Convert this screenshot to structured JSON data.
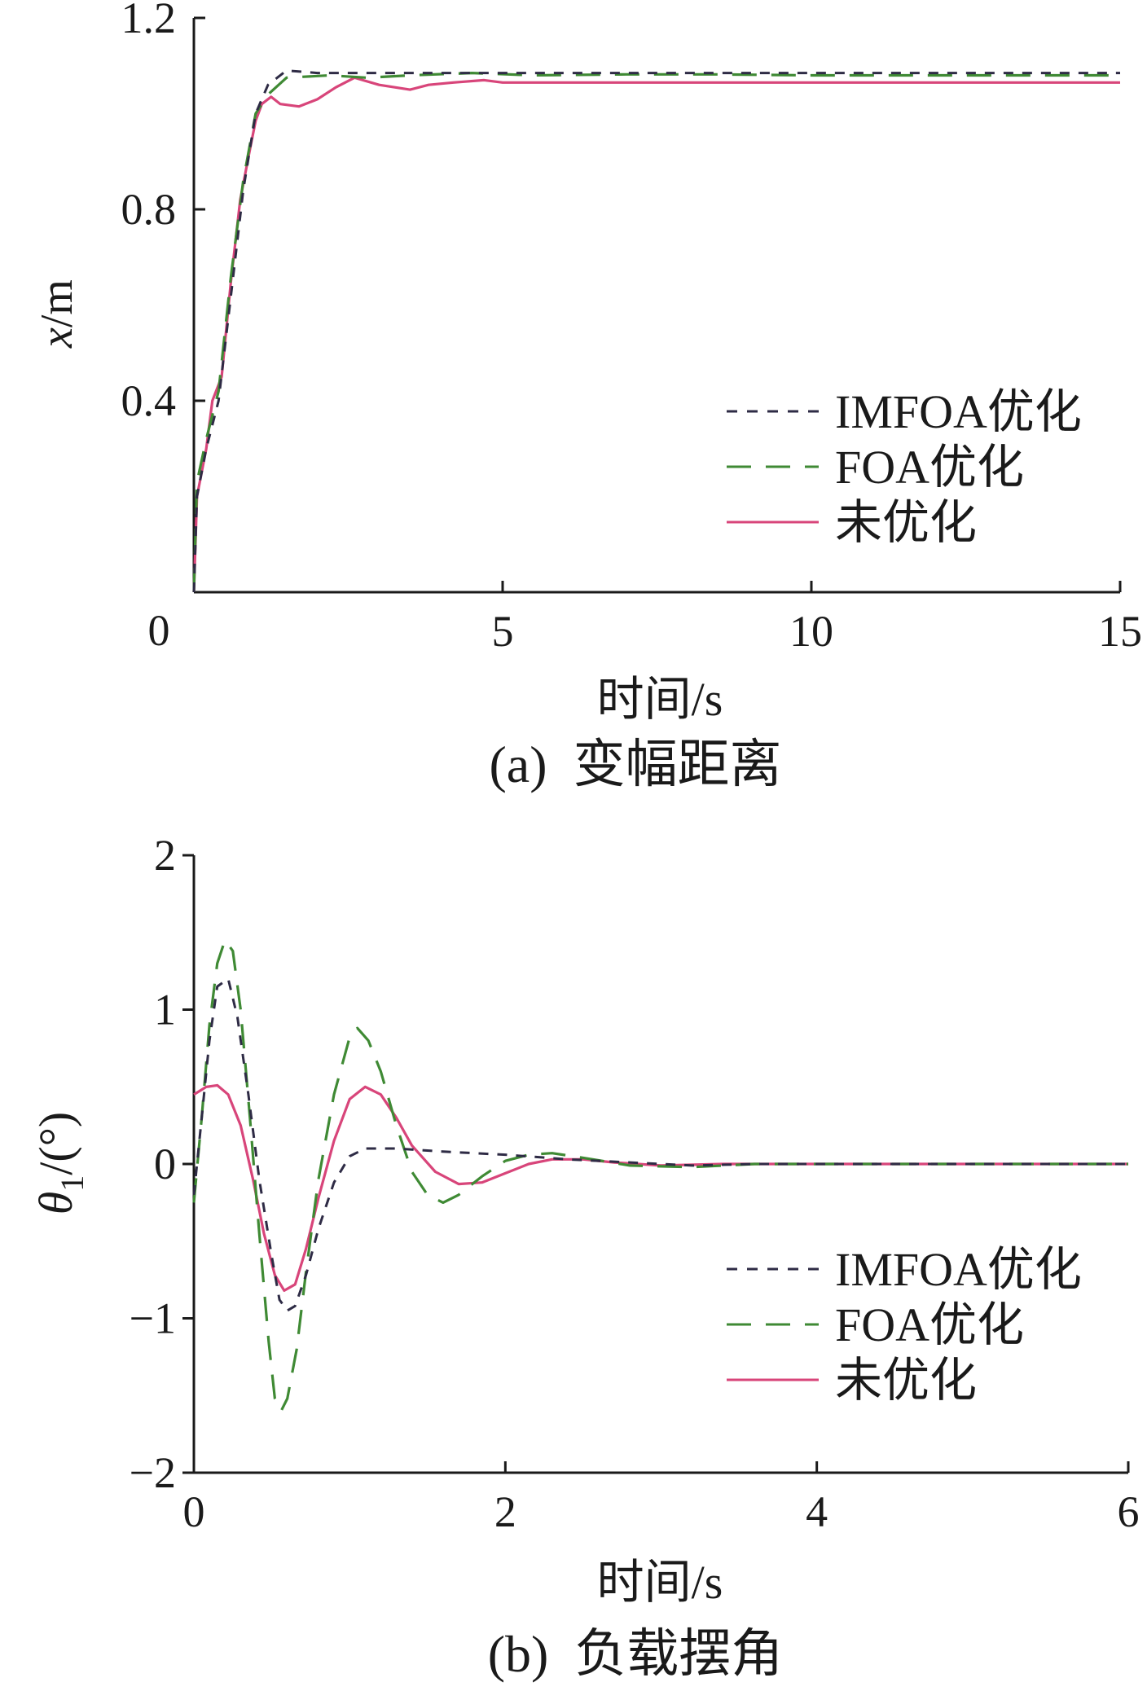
{
  "colors": {
    "imfoa": "#2e2b45",
    "foa": "#3f8a34",
    "unopt": "#d8457a",
    "axis": "#1a1a1a"
  },
  "chart_data": [
    {
      "type": "line",
      "caption": "(a)  变幅距离",
      "xlabel": "时间/s",
      "ylabel": {
        "var": "x",
        "unit": "/m"
      },
      "xlim": [
        0,
        15
      ],
      "ylim": [
        0,
        1.2
      ],
      "xticks": [
        0,
        5,
        10,
        15
      ],
      "xtick_labels": [
        "0",
        "5",
        "10",
        "15"
      ],
      "yticks": [
        0.4,
        0.8,
        1.2
      ],
      "ytick_labels": [
        "0.4",
        "0.8",
        "1.2"
      ],
      "legend": {
        "placement": "lower-right",
        "entries": [
          "IMFOA优化",
          "FOA优化",
          "未优化"
        ]
      },
      "grid": false,
      "series": [
        {
          "name": "IMFOA优化",
          "key": "imfoa",
          "dash": "dense",
          "points": [
            [
              0,
              0
            ],
            [
              0.05,
              0.2
            ],
            [
              0.2,
              0.3
            ],
            [
              0.4,
              0.4
            ],
            [
              0.6,
              0.62
            ],
            [
              0.8,
              0.84
            ],
            [
              1.0,
              1.0
            ],
            [
              1.2,
              1.06
            ],
            [
              1.5,
              1.09
            ],
            [
              2.0,
              1.085
            ],
            [
              15,
              1.085
            ]
          ]
        },
        {
          "name": "FOA优化",
          "key": "foa",
          "dash": "long",
          "points": [
            [
              0,
              0
            ],
            [
              0.05,
              0.23
            ],
            [
              0.2,
              0.32
            ],
            [
              0.4,
              0.42
            ],
            [
              0.6,
              0.66
            ],
            [
              0.8,
              0.86
            ],
            [
              1.0,
              1.0
            ],
            [
              1.2,
              1.04
            ],
            [
              1.5,
              1.075
            ],
            [
              2.2,
              1.08
            ],
            [
              2.8,
              1.075
            ],
            [
              3.5,
              1.08
            ],
            [
              4.5,
              1.085
            ],
            [
              5.5,
              1.08
            ],
            [
              7,
              1.082
            ],
            [
              8.5,
              1.082
            ],
            [
              10,
              1.08
            ],
            [
              15,
              1.08
            ]
          ]
        },
        {
          "name": "未优化",
          "key": "unopt",
          "dash": "solid",
          "points": [
            [
              0,
              0
            ],
            [
              0.05,
              0.2
            ],
            [
              0.2,
              0.3
            ],
            [
              0.3,
              0.4
            ],
            [
              0.45,
              0.45
            ],
            [
              0.6,
              0.65
            ],
            [
              0.75,
              0.82
            ],
            [
              0.9,
              0.92
            ],
            [
              1.0,
              0.985
            ],
            [
              1.1,
              1.02
            ],
            [
              1.25,
              1.035
            ],
            [
              1.4,
              1.02
            ],
            [
              1.7,
              1.015
            ],
            [
              2.0,
              1.03
            ],
            [
              2.3,
              1.055
            ],
            [
              2.6,
              1.075
            ],
            [
              3.0,
              1.06
            ],
            [
              3.5,
              1.05
            ],
            [
              3.8,
              1.06
            ],
            [
              4.2,
              1.065
            ],
            [
              4.7,
              1.07
            ],
            [
              5.0,
              1.065
            ],
            [
              15,
              1.065
            ]
          ]
        }
      ]
    },
    {
      "type": "line",
      "caption": "(b)  负载摆角",
      "xlabel": "时间/s",
      "ylabel": {
        "var": "θ",
        "sub": "1",
        "unit": "/(°)"
      },
      "xlim": [
        0,
        6
      ],
      "ylim": [
        -2,
        2
      ],
      "xticks": [
        0,
        2,
        4,
        6
      ],
      "xtick_labels": [
        "0",
        "2",
        "4",
        "6"
      ],
      "yticks": [
        -2,
        -1,
        0,
        1,
        2
      ],
      "ytick_labels": [
        "−2",
        "−1",
        "0",
        "1",
        "2"
      ],
      "legend": {
        "placement": "lower-right",
        "entries": [
          "IMFOA优化",
          "FOA优化",
          "未优化"
        ]
      },
      "grid": false,
      "series": [
        {
          "name": "IMFOA优化",
          "key": "imfoa",
          "dash": "dense",
          "points": [
            [
              0,
              -0.2
            ],
            [
              0.05,
              0.3
            ],
            [
              0.1,
              0.8
            ],
            [
              0.15,
              1.15
            ],
            [
              0.22,
              1.2
            ],
            [
              0.28,
              0.95
            ],
            [
              0.35,
              0.45
            ],
            [
              0.42,
              -0.1
            ],
            [
              0.5,
              -0.6
            ],
            [
              0.55,
              -0.88
            ],
            [
              0.6,
              -0.95
            ],
            [
              0.65,
              -0.92
            ],
            [
              0.72,
              -0.72
            ],
            [
              0.8,
              -0.42
            ],
            [
              0.9,
              -0.12
            ],
            [
              1.0,
              0.05
            ],
            [
              1.1,
              0.1
            ],
            [
              1.3,
              0.1
            ],
            [
              1.6,
              0.08
            ],
            [
              2.0,
              0.06
            ],
            [
              2.4,
              0.03
            ],
            [
              2.8,
              0.01
            ],
            [
              3.2,
              -0.01
            ],
            [
              3.6,
              0.0
            ],
            [
              6,
              0.0
            ]
          ]
        },
        {
          "name": "FOA优化",
          "key": "foa",
          "dash": "long",
          "points": [
            [
              0,
              -0.25
            ],
            [
              0.05,
              0.3
            ],
            [
              0.1,
              0.9
            ],
            [
              0.15,
              1.3
            ],
            [
              0.2,
              1.45
            ],
            [
              0.25,
              1.38
            ],
            [
              0.3,
              1.0
            ],
            [
              0.36,
              0.3
            ],
            [
              0.42,
              -0.45
            ],
            [
              0.48,
              -1.15
            ],
            [
              0.52,
              -1.52
            ],
            [
              0.56,
              -1.6
            ],
            [
              0.6,
              -1.52
            ],
            [
              0.66,
              -1.2
            ],
            [
              0.72,
              -0.7
            ],
            [
              0.8,
              -0.1
            ],
            [
              0.9,
              0.45
            ],
            [
              1.0,
              0.82
            ],
            [
              1.05,
              0.88
            ],
            [
              1.12,
              0.8
            ],
            [
              1.2,
              0.6
            ],
            [
              1.3,
              0.25
            ],
            [
              1.4,
              -0.05
            ],
            [
              1.5,
              -0.2
            ],
            [
              1.6,
              -0.25
            ],
            [
              1.7,
              -0.2
            ],
            [
              1.85,
              -0.08
            ],
            [
              2.0,
              0.02
            ],
            [
              2.15,
              0.06
            ],
            [
              2.3,
              0.07
            ],
            [
              2.5,
              0.04
            ],
            [
              2.8,
              -0.01
            ],
            [
              3.2,
              -0.02
            ],
            [
              3.6,
              0.0
            ],
            [
              6,
              0.0
            ]
          ]
        },
        {
          "name": "未优化",
          "key": "unopt",
          "dash": "solid",
          "points": [
            [
              0,
              0.45
            ],
            [
              0.08,
              0.5
            ],
            [
              0.15,
              0.51
            ],
            [
              0.22,
              0.45
            ],
            [
              0.3,
              0.25
            ],
            [
              0.38,
              -0.1
            ],
            [
              0.45,
              -0.45
            ],
            [
              0.52,
              -0.72
            ],
            [
              0.58,
              -0.82
            ],
            [
              0.65,
              -0.78
            ],
            [
              0.72,
              -0.55
            ],
            [
              0.8,
              -0.22
            ],
            [
              0.9,
              0.15
            ],
            [
              1.0,
              0.42
            ],
            [
              1.1,
              0.5
            ],
            [
              1.2,
              0.45
            ],
            [
              1.3,
              0.3
            ],
            [
              1.4,
              0.12
            ],
            [
              1.55,
              -0.05
            ],
            [
              1.7,
              -0.13
            ],
            [
              1.85,
              -0.12
            ],
            [
              2.0,
              -0.06
            ],
            [
              2.15,
              0.0
            ],
            [
              2.3,
              0.03
            ],
            [
              2.5,
              0.03
            ],
            [
              2.7,
              0.01
            ],
            [
              3.0,
              -0.01
            ],
            [
              3.4,
              0.0
            ],
            [
              6,
              0.0
            ]
          ]
        }
      ]
    }
  ]
}
